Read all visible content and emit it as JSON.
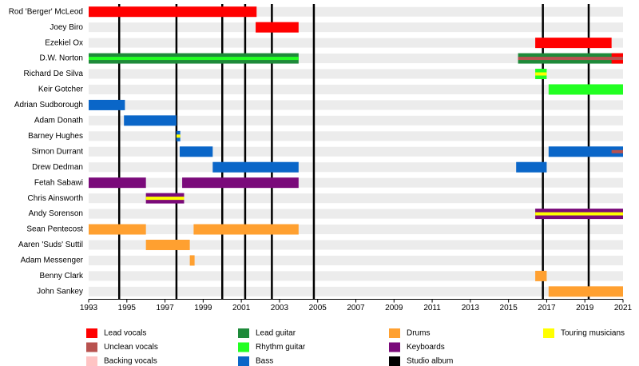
{
  "chart_data": {
    "type": "timeline",
    "xlim": [
      1993,
      2021
    ],
    "xticks": [
      1993,
      1995,
      1997,
      1999,
      2001,
      2003,
      2005,
      2007,
      2009,
      2011,
      2013,
      2015,
      2017,
      2019,
      2021
    ],
    "legend": [
      {
        "name": "Lead vocals",
        "color": "#ff0000"
      },
      {
        "name": "Unclean vocals",
        "color": "#b8524f"
      },
      {
        "name": "Backing vocals",
        "color": "#ffc4c4"
      },
      {
        "name": "Lead guitar",
        "color": "#1e8a3a"
      },
      {
        "name": "Rhythm guitar",
        "color": "#22ff22"
      },
      {
        "name": "Bass",
        "color": "#0a66c8"
      },
      {
        "name": "Drums",
        "color": "#ffa030"
      },
      {
        "name": "Keyboards",
        "color": "#7a0a7a"
      },
      {
        "name": "Studio album",
        "color": "#000000"
      },
      {
        "name": "Touring musicians",
        "color": "#ffff00"
      }
    ],
    "albums": [
      1994.6,
      1997.6,
      2000.0,
      2001.2,
      2002.6,
      2004.8,
      2016.8,
      2019.2
    ],
    "members": [
      {
        "name": "Rod 'Berger' McLeod",
        "periods": [
          {
            "start": 1993,
            "end": 2001.8,
            "role": 0
          }
        ]
      },
      {
        "name": "Joey Biro",
        "periods": [
          {
            "start": 2001.75,
            "end": 2004.0,
            "role": 0
          }
        ]
      },
      {
        "name": "Ezekiel Ox",
        "periods": [
          {
            "start": 2016.4,
            "end": 2020.4,
            "role": 0
          }
        ]
      },
      {
        "name": "D.W. Norton",
        "periods": [
          {
            "start": 1993,
            "end": 2004.0,
            "role": 3
          },
          {
            "start": 1993,
            "end": 2004.0,
            "role": 4,
            "stripe": true
          },
          {
            "start": 2015.5,
            "end": 2021,
            "role": 3
          },
          {
            "start": 2020.4,
            "end": 2021,
            "role": 0
          },
          {
            "start": 2015.5,
            "end": 2021,
            "role": 1,
            "stripe": true
          }
        ]
      },
      {
        "name": "Richard De Silva",
        "periods": [
          {
            "start": 2016.4,
            "end": 2017.0,
            "role": 4
          },
          {
            "start": 2016.4,
            "end": 2017.0,
            "role": 9,
            "stripe": true
          }
        ]
      },
      {
        "name": "Keir Gotcher",
        "periods": [
          {
            "start": 2017.1,
            "end": 2021,
            "role": 4
          }
        ]
      },
      {
        "name": "Adrian Sudborough",
        "periods": [
          {
            "start": 1993,
            "end": 1994.9,
            "role": 5
          }
        ]
      },
      {
        "name": "Adam Donath",
        "periods": [
          {
            "start": 1994.85,
            "end": 1997.6,
            "role": 5
          }
        ]
      },
      {
        "name": "Barney Hughes",
        "periods": [
          {
            "start": 1997.6,
            "end": 1997.8,
            "role": 5
          },
          {
            "start": 1997.6,
            "end": 1997.8,
            "role": 9,
            "stripe": true
          }
        ]
      },
      {
        "name": "Simon Durrant",
        "periods": [
          {
            "start": 1997.77,
            "end": 1999.5,
            "role": 5
          },
          {
            "start": 2017.1,
            "end": 2021,
            "role": 5
          },
          {
            "start": 2020.4,
            "end": 2021,
            "role": 1,
            "stripe": true
          }
        ]
      },
      {
        "name": "Drew Dedman",
        "periods": [
          {
            "start": 1999.5,
            "end": 2004.0,
            "role": 5
          },
          {
            "start": 2015.4,
            "end": 2017.0,
            "role": 5
          }
        ]
      },
      {
        "name": "Fetah Sabawi",
        "periods": [
          {
            "start": 1993,
            "end": 1996.0,
            "role": 7
          },
          {
            "start": 1997.9,
            "end": 2004.0,
            "role": 7
          }
        ]
      },
      {
        "name": "Chris Ainsworth",
        "periods": [
          {
            "start": 1996.0,
            "end": 1998.0,
            "role": 7
          },
          {
            "start": 1996.0,
            "end": 1998.0,
            "role": 9,
            "stripe": true
          }
        ]
      },
      {
        "name": "Andy Sorenson",
        "periods": [
          {
            "start": 2016.4,
            "end": 2021,
            "role": 7
          },
          {
            "start": 2016.4,
            "end": 2021,
            "role": 9,
            "stripe": true
          }
        ]
      },
      {
        "name": "Sean Pentecost",
        "periods": [
          {
            "start": 1993,
            "end": 1996.0,
            "role": 6
          },
          {
            "start": 1998.5,
            "end": 2004.0,
            "role": 6
          }
        ]
      },
      {
        "name": "Aaren 'Suds' Suttil",
        "periods": [
          {
            "start": 1996.0,
            "end": 1998.3,
            "role": 6
          }
        ]
      },
      {
        "name": "Adam Messenger",
        "periods": [
          {
            "start": 1998.3,
            "end": 1998.55,
            "role": 6
          }
        ]
      },
      {
        "name": "Benny Clark",
        "periods": [
          {
            "start": 2016.4,
            "end": 2017.0,
            "role": 6
          }
        ]
      },
      {
        "name": "John Sankey",
        "periods": [
          {
            "start": 2017.1,
            "end": 2021,
            "role": 6
          }
        ]
      }
    ]
  }
}
